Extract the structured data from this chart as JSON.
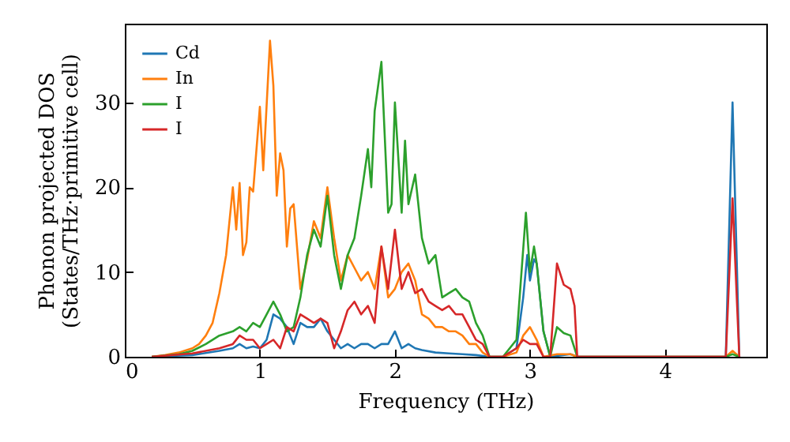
{
  "chart_data": {
    "type": "line",
    "xlabel": "Frequency (THz)",
    "ylabel": "Phonon projected DOS\n(States/THz·primitive cell)",
    "xlim": [
      0,
      4.75
    ],
    "ylim": [
      0,
      39.3
    ],
    "xticks": [
      0,
      1,
      2,
      3,
      4
    ],
    "yticks": [
      0,
      10,
      20,
      30
    ],
    "grid": false,
    "legend": "top left",
    "series": [
      {
        "name": "Cd",
        "color": "#1f77b4",
        "x": [
          0.2,
          0.5,
          0.7,
          0.8,
          0.85,
          0.9,
          0.95,
          1.0,
          1.05,
          1.1,
          1.15,
          1.2,
          1.25,
          1.3,
          1.35,
          1.4,
          1.45,
          1.5,
          1.55,
          1.6,
          1.65,
          1.7,
          1.75,
          1.8,
          1.85,
          1.9,
          1.95,
          2.0,
          2.05,
          2.1,
          2.15,
          2.2,
          2.3,
          2.4,
          2.5,
          2.6,
          2.7,
          2.8,
          2.9,
          2.95,
          2.98,
          3.0,
          3.03,
          3.05,
          3.1,
          3.15,
          3.3,
          3.35,
          4.45,
          4.5,
          4.55
        ],
        "values": [
          0,
          0.2,
          0.7,
          1,
          1.5,
          1,
          1.2,
          1,
          2,
          5,
          4.5,
          3.5,
          1.5,
          4,
          3.5,
          3.5,
          4.5,
          3,
          2,
          1,
          1.5,
          1,
          1.5,
          1.5,
          1,
          1.5,
          1.5,
          3,
          1,
          1.5,
          1,
          0.8,
          0.5,
          0.4,
          0.3,
          0.2,
          0,
          0,
          1,
          7,
          12,
          9,
          11.5,
          11,
          3,
          0,
          0.3,
          0,
          0,
          30,
          0
        ]
      },
      {
        "name": "In",
        "color": "#ff7f0e",
        "x": [
          0.2,
          0.3,
          0.4,
          0.5,
          0.55,
          0.6,
          0.65,
          0.7,
          0.75,
          0.8,
          0.825,
          0.85,
          0.875,
          0.9,
          0.925,
          0.95,
          1.0,
          1.025,
          1.075,
          1.1,
          1.125,
          1.15,
          1.175,
          1.2,
          1.225,
          1.25,
          1.3,
          1.35,
          1.4,
          1.45,
          1.5,
          1.55,
          1.6,
          1.65,
          1.7,
          1.75,
          1.8,
          1.85,
          1.9,
          1.95,
          2.0,
          2.05,
          2.1,
          2.15,
          2.2,
          2.25,
          2.3,
          2.35,
          2.4,
          2.45,
          2.5,
          2.55,
          2.6,
          2.65,
          2.7,
          2.8,
          2.9,
          2.95,
          3.0,
          3.05,
          3.1,
          3.2,
          3.3,
          3.35,
          4.45,
          4.5,
          4.55
        ],
        "values": [
          0,
          0.2,
          0.5,
          1,
          1.5,
          2.5,
          4,
          7.5,
          12,
          20,
          15,
          20.5,
          12,
          13.5,
          20,
          19.5,
          29.5,
          22,
          37.3,
          32,
          19,
          24,
          22,
          13,
          17.5,
          18,
          8,
          11.5,
          16,
          14,
          20,
          14,
          9,
          12,
          10.5,
          9,
          10,
          8,
          13,
          7,
          8,
          10,
          11,
          9,
          5,
          4.5,
          3.5,
          3.5,
          3,
          3,
          2.5,
          1.5,
          1.5,
          0.5,
          0,
          0,
          0.5,
          2.5,
          3.5,
          2,
          0,
          0.3,
          0.3,
          0,
          0,
          0.7,
          0
        ]
      },
      {
        "name": "I",
        "color": "#2ca02c",
        "x": [
          0.2,
          0.4,
          0.5,
          0.6,
          0.7,
          0.8,
          0.85,
          0.9,
          0.95,
          1.0,
          1.05,
          1.1,
          1.15,
          1.2,
          1.25,
          1.3,
          1.35,
          1.4,
          1.45,
          1.5,
          1.55,
          1.6,
          1.65,
          1.7,
          1.75,
          1.8,
          1.825,
          1.85,
          1.9,
          1.95,
          1.975,
          2.0,
          2.05,
          2.075,
          2.1,
          2.15,
          2.2,
          2.25,
          2.3,
          2.35,
          2.4,
          2.45,
          2.5,
          2.55,
          2.6,
          2.65,
          2.7,
          2.8,
          2.9,
          2.97,
          3.0,
          3.03,
          3.05,
          3.1,
          3.15,
          3.2,
          3.25,
          3.3,
          3.35,
          4.45,
          4.5,
          4.55
        ],
        "values": [
          0,
          0.3,
          0.7,
          1.5,
          2.5,
          3,
          3.5,
          3,
          4,
          3.5,
          5,
          6.5,
          5,
          3,
          3.5,
          7,
          12,
          15,
          13,
          19,
          12,
          8,
          12,
          14,
          19,
          24.5,
          20,
          29,
          34.8,
          17,
          18,
          30,
          17,
          25.5,
          18,
          21.5,
          14,
          11,
          12,
          7,
          7.5,
          8,
          7,
          6.5,
          4,
          2.5,
          0,
          0,
          2,
          17,
          10,
          13,
          11,
          3,
          0,
          3.5,
          2.8,
          2.5,
          0,
          0,
          0.3,
          0
        ]
      },
      {
        "name": "I",
        "color": "#d62728",
        "x": [
          0.2,
          0.5,
          0.7,
          0.8,
          0.85,
          0.9,
          0.95,
          1.0,
          1.05,
          1.1,
          1.15,
          1.2,
          1.25,
          1.3,
          1.35,
          1.4,
          1.45,
          1.5,
          1.55,
          1.6,
          1.65,
          1.7,
          1.75,
          1.8,
          1.85,
          1.9,
          1.95,
          2.0,
          2.05,
          2.1,
          2.15,
          2.2,
          2.25,
          2.3,
          2.35,
          2.4,
          2.45,
          2.5,
          2.55,
          2.6,
          2.65,
          2.7,
          2.8,
          2.9,
          2.95,
          3.0,
          3.05,
          3.1,
          3.15,
          3.2,
          3.25,
          3.3,
          3.33,
          3.35,
          4.45,
          4.5,
          4.55
        ],
        "values": [
          0,
          0.4,
          1,
          1.5,
          2.5,
          2,
          2,
          1,
          1.5,
          2,
          1,
          3.5,
          3,
          5,
          4.5,
          4,
          4.5,
          4,
          1,
          3,
          5.5,
          6.5,
          5,
          6,
          4,
          13,
          8,
          15,
          8,
          10,
          7.5,
          8,
          6.5,
          6,
          5.5,
          6,
          5,
          5,
          3.5,
          2,
          1.5,
          0,
          0,
          1,
          2,
          1.5,
          1.5,
          0,
          0,
          11,
          8.5,
          8,
          6,
          0,
          0,
          18.7,
          0
        ]
      }
    ]
  }
}
